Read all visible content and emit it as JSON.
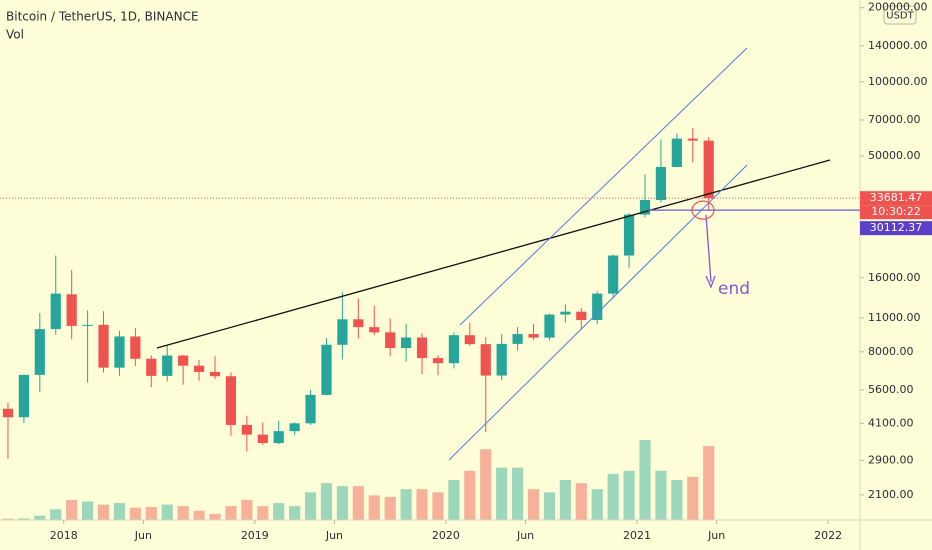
{
  "chart_data": {
    "type": "candlestick",
    "title": "Bitcoin / TetherUS, 1D, BINANCE",
    "subtitle": "Vol",
    "currency": "USDT",
    "annotation": "end",
    "countdown": "10:30:22",
    "level": 30112.37,
    "log_scale": true,
    "grid": false,
    "up_color": "#26a69a",
    "down_color": "#ef5350",
    "x": [
      "2017-09",
      "2017-10",
      "2017-11",
      "2017-12",
      "2018-01",
      "2018-02",
      "2018-03",
      "2018-04",
      "2018-05",
      "2018-06",
      "2018-07",
      "2018-08",
      "2018-09",
      "2018-10",
      "2018-11",
      "2018-12",
      "2019-01",
      "2019-02",
      "2019-03",
      "2019-04",
      "2019-05",
      "2019-06",
      "2019-07",
      "2019-08",
      "2019-09",
      "2019-10",
      "2019-11",
      "2019-12",
      "2020-01",
      "2020-02",
      "2020-03",
      "2020-04",
      "2020-05",
      "2020-06",
      "2020-07",
      "2020-08",
      "2020-09",
      "2020-10",
      "2020-11",
      "2020-12",
      "2021-01",
      "2021-02",
      "2021-03",
      "2021-04",
      "2021-05"
    ],
    "open": [
      4700,
      4340,
      6450,
      9900,
      13700,
      10200,
      10300,
      6900,
      9240,
      7500,
      6390,
      7730,
      7030,
      6630,
      6370,
      4040,
      3690,
      3410,
      3810,
      4100,
      5350,
      8550,
      10850,
      10080,
      9600,
      8290,
      9150,
      7550,
      7200,
      9350,
      8600,
      6410,
      8620,
      9450,
      9140,
      11340,
      11650,
      10780,
      13800,
      19700,
      28900,
      33100,
      45100,
      58800,
      57700
    ],
    "high": [
      4980,
      6470,
      11500,
      19700,
      17200,
      11800,
      11700,
      9750,
      10000,
      7750,
      8500,
      7760,
      7410,
      7680,
      6600,
      4400,
      4140,
      4200,
      4140,
      5600,
      9100,
      13970,
      13200,
      12330,
      10950,
      10400,
      9520,
      7750,
      9580,
      10500,
      9190,
      9470,
      10080,
      10380,
      11450,
      12480,
      12070,
      14100,
      19900,
      29300,
      41950,
      58350,
      61780,
      64850,
      59600
    ],
    "low": [
      2950,
      4110,
      5500,
      9400,
      9000,
      6000,
      6600,
      6400,
      7000,
      5750,
      6070,
      5880,
      6110,
      6200,
      3650,
      3150,
      3350,
      3370,
      3670,
      4030,
      5330,
      7450,
      9070,
      9350,
      7700,
      7300,
      6500,
      6430,
      6850,
      8450,
      3780,
      6150,
      8100,
      8920,
      8900,
      10520,
      9820,
      10370,
      13200,
      17600,
      28130,
      32300,
      44950,
      47050,
      30000
    ],
    "close": [
      4340,
      6450,
      9900,
      13800,
      10200,
      10300,
      6900,
      9240,
      7500,
      6390,
      7730,
      7030,
      6630,
      6370,
      4040,
      3690,
      3410,
      3810,
      4100,
      5350,
      8550,
      10850,
      10080,
      9600,
      8290,
      9150,
      7550,
      7200,
      9350,
      8600,
      6410,
      8620,
      9450,
      9140,
      11340,
      11650,
      10780,
      13800,
      19700,
      28900,
      33100,
      45100,
      58800,
      57700,
      33681.47
    ],
    "volume": [
      40,
      50,
      140,
      350,
      650,
      600,
      500,
      550,
      400,
      420,
      500,
      450,
      300,
      200,
      450,
      650,
      450,
      550,
      450,
      900,
      1200,
      1100,
      1100,
      800,
      750,
      1000,
      1000,
      900,
      1300,
      1600,
      2300,
      1700,
      1700,
      1000,
      900,
      1300,
      1200,
      1000,
      1500,
      1600,
      2600,
      1600,
      1300,
      1400,
      2400
    ],
    "xlim": [
      "2017-09",
      "2022-03"
    ],
    "xticks": [
      {
        "value": "2018-01",
        "label": "2018"
      },
      {
        "value": "2018-06",
        "label": "Jun"
      },
      {
        "value": "2019-01",
        "label": "2019"
      },
      {
        "value": "2019-06",
        "label": "Jun"
      },
      {
        "value": "2020-01",
        "label": "2020"
      },
      {
        "value": "2020-06",
        "label": "Jun"
      },
      {
        "value": "2021-01",
        "label": "2021"
      },
      {
        "value": "2021-06",
        "label": "Jun"
      },
      {
        "value": "2022-01",
        "label": "2022"
      }
    ],
    "ylim": [
      1660,
      215000
    ],
    "yticks": [
      {
        "value": 2100,
        "label": "2100.00"
      },
      {
        "value": 2900,
        "label": "2900.00"
      },
      {
        "value": 4100,
        "label": "4100.00"
      },
      {
        "value": 5600,
        "label": "5600.00"
      },
      {
        "value": 8000,
        "label": "8000.00"
      },
      {
        "value": 11000,
        "label": "11000.00"
      },
      {
        "value": 16000,
        "label": "16000.00"
      },
      {
        "value": 50000,
        "label": "50000.00"
      },
      {
        "value": 70000,
        "label": "70000.00"
      },
      {
        "value": 100000,
        "label": "100000.00"
      },
      {
        "value": 140000,
        "label": "140000.00"
      },
      {
        "value": 200000,
        "label": "200000.00"
      }
    ]
  }
}
